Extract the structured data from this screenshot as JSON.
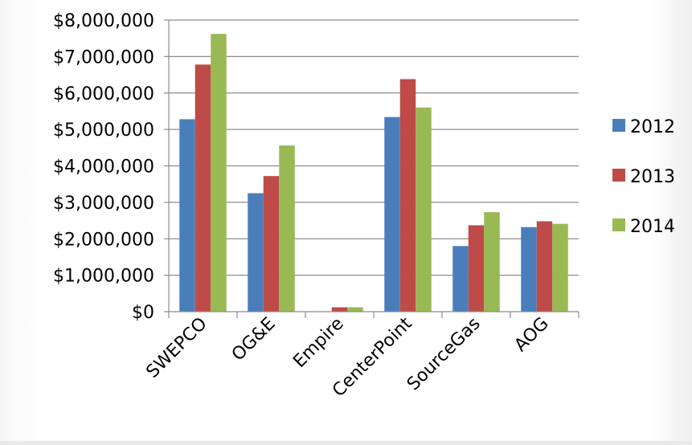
{
  "chart_data": {
    "type": "bar",
    "title": "",
    "xlabel": "",
    "ylabel": "",
    "categories": [
      "SWEPCO",
      "OG&E",
      "Empire",
      "CenterPoint",
      "SourceGas",
      "AOG"
    ],
    "series": [
      {
        "name": "2012",
        "color": "#4a7ebb",
        "values": [
          5280000,
          3250000,
          0,
          5340000,
          1800000,
          2320000
        ]
      },
      {
        "name": "2013",
        "color": "#be4b48",
        "values": [
          6780000,
          3720000,
          120000,
          6380000,
          2370000,
          2480000
        ]
      },
      {
        "name": "2014",
        "color": "#98b954",
        "values": [
          7620000,
          4560000,
          120000,
          5600000,
          2730000,
          2410000
        ]
      }
    ],
    "ylim": [
      0,
      8000000
    ],
    "yticks": [
      0,
      1000000,
      2000000,
      3000000,
      4000000,
      5000000,
      6000000,
      7000000,
      8000000
    ],
    "ytick_labels": [
      "$0",
      "$1,000,000",
      "$2,000,000",
      "$3,000,000",
      "$4,000,000",
      "$5,000,000",
      "$6,000,000",
      "$7,000,000",
      "$8,000,000"
    ],
    "grid": "horizontal",
    "legend_position": "right"
  }
}
